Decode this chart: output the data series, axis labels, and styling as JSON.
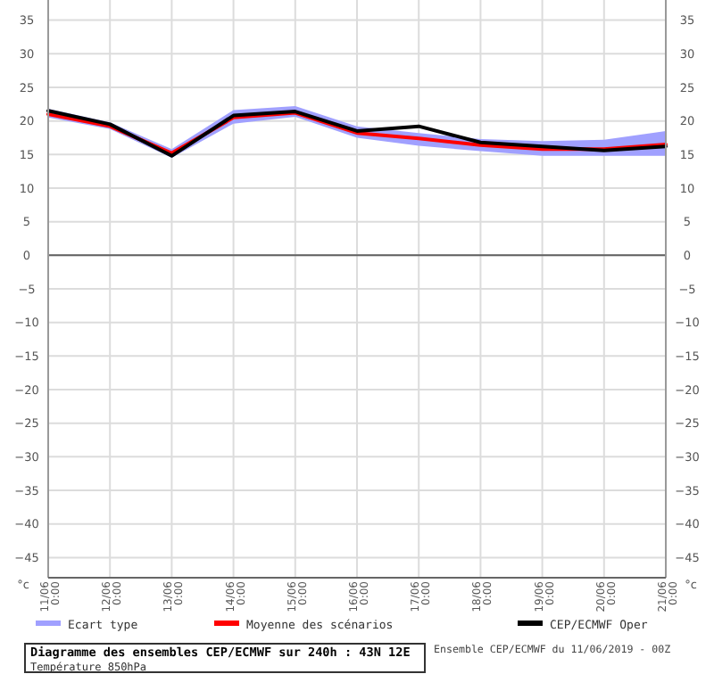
{
  "chart_data": {
    "type": "line",
    "title": "Diagramme des ensembles CEP/ECMWF sur 240h : 43N 12E",
    "subtitle": "Température 850hPa",
    "ylabel": "°c",
    "y2label": "°c",
    "categories": [
      "11/06 0:00",
      "12/06 0:00",
      "13/06 0:00",
      "14/06 0:00",
      "15/06 0:00",
      "16/06 0:00",
      "17/06 0:00",
      "18/06 0:00",
      "19/06 0:00",
      "20/06 0:00",
      "21/06 0:00"
    ],
    "series": [
      {
        "name": "Moyenne des scénarios",
        "color": "#ff0000",
        "values": [
          21.0,
          19.2,
          15.2,
          20.5,
          21.2,
          18.2,
          17.4,
          16.4,
          15.8,
          15.8,
          16.5
        ],
        "lower": [
          20.5,
          18.8,
          14.5,
          19.6,
          20.6,
          17.5,
          16.3,
          15.5,
          14.8,
          14.8,
          14.8
        ],
        "upper": [
          21.8,
          19.8,
          15.8,
          21.6,
          22.2,
          19.2,
          18.2,
          17.3,
          17.0,
          17.2,
          18.5
        ]
      },
      {
        "name": "CEP/ECMWF Oper",
        "color": "#000000",
        "values": [
          21.5,
          19.5,
          14.8,
          20.8,
          21.4,
          18.5,
          19.2,
          16.8,
          16.2,
          15.6,
          16.2
        ]
      }
    ],
    "ylim": [
      -48,
      38
    ],
    "yticks": [
      -45,
      -40,
      -35,
      -30,
      -25,
      -20,
      -15,
      -10,
      -5,
      0,
      5,
      10,
      15,
      20,
      25,
      30,
      35
    ],
    "y2lim": [
      -48,
      38
    ],
    "y2ticks": [
      -45,
      -40,
      -35,
      -30,
      -25,
      -20,
      -15,
      -10,
      -5,
      0,
      5,
      10,
      15,
      20,
      25,
      30,
      35
    ],
    "ref_lines": [
      {
        "axis": "y",
        "value": 0,
        "color": "#606060"
      }
    ],
    "annotations": [
      "Ecart type",
      "Ensemble CEP/ECMWF du 11/06/2019 - 00Z"
    ],
    "grid": true,
    "legend": "bottom",
    "line_style": "solid",
    "marker": "none"
  }
}
